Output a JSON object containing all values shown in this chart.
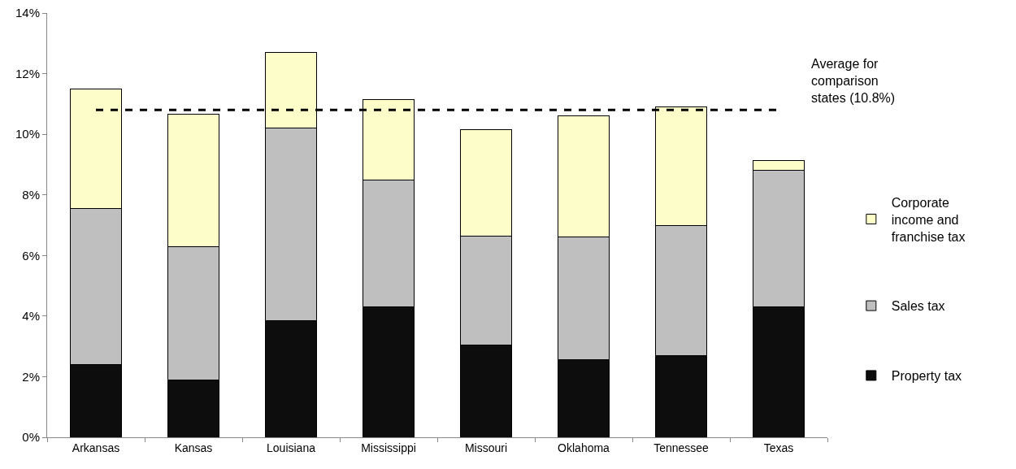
{
  "chart_data": {
    "type": "bar",
    "stacked": true,
    "categories": [
      "Arkansas",
      "Kansas",
      "Louisiana",
      "Mississippi",
      "Missouri",
      "Oklahoma",
      "Tennessee",
      "Texas"
    ],
    "series": [
      {
        "name": "Property tax",
        "color": "#0d0d0d",
        "values": [
          2.4,
          1.9,
          3.85,
          4.3,
          3.05,
          2.55,
          2.7,
          4.3
        ]
      },
      {
        "name": "Sales tax",
        "color": "#bfbfbf",
        "values": [
          5.15,
          4.4,
          6.35,
          4.2,
          3.6,
          4.05,
          4.3,
          4.5
        ]
      },
      {
        "name": "Corporate income and franchise tax",
        "color": "#fdfdc9",
        "values": [
          3.93,
          4.35,
          2.5,
          2.65,
          3.5,
          4.0,
          3.9,
          0.33
        ]
      }
    ],
    "ylim": [
      0,
      14
    ],
    "yticks": [
      {
        "value": 0,
        "label": "0%"
      },
      {
        "value": 2,
        "label": "2%"
      },
      {
        "value": 4,
        "label": "4%"
      },
      {
        "value": 6,
        "label": "6%"
      },
      {
        "value": 8,
        "label": "8%"
      },
      {
        "value": 10,
        "label": "10%"
      },
      {
        "value": 12,
        "label": "12%"
      },
      {
        "value": 14,
        "label": "14%"
      }
    ],
    "ref_lines": [
      {
        "axis": "y",
        "value": 10.8,
        "label": "Average for comparison states (10.8%)",
        "line_style": "dashed",
        "color": "#000000"
      }
    ],
    "legend": "right"
  }
}
